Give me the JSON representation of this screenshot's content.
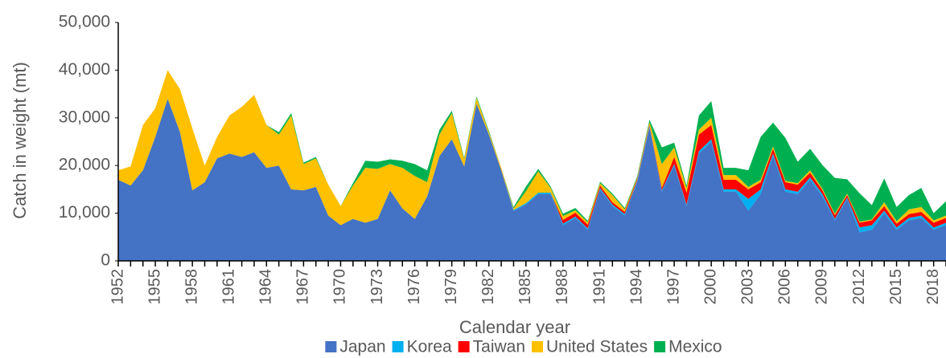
{
  "chart_data": {
    "type": "area",
    "stacked": true,
    "x_label": "Calendar year",
    "y_label": "Catch in weight (mt)",
    "x": [
      1952,
      1953,
      1954,
      1955,
      1956,
      1957,
      1958,
      1959,
      1960,
      1961,
      1962,
      1963,
      1964,
      1965,
      1966,
      1967,
      1968,
      1969,
      1970,
      1971,
      1972,
      1973,
      1974,
      1975,
      1976,
      1977,
      1978,
      1979,
      1980,
      1981,
      1982,
      1983,
      1984,
      1985,
      1986,
      1987,
      1988,
      1989,
      1990,
      1991,
      1992,
      1993,
      1994,
      1995,
      1996,
      1997,
      1998,
      1999,
      2000,
      2001,
      2002,
      2003,
      2004,
      2005,
      2006,
      2007,
      2008,
      2009,
      2010,
      2011,
      2012,
      2013,
      2014,
      2015,
      2016,
      2017,
      2018,
      2019
    ],
    "xlim": [
      1952,
      2019
    ],
    "xticks": [
      1952,
      1955,
      1958,
      1961,
      1964,
      1967,
      1970,
      1973,
      1976,
      1979,
      1982,
      1985,
      1988,
      1991,
      1994,
      1997,
      2000,
      2003,
      2006,
      2009,
      2012,
      2015,
      2018
    ],
    "ylim": [
      0,
      50000
    ],
    "yticks": [
      0,
      {
        "value": 10000,
        "label": "10,000"
      },
      {
        "value": 20000,
        "label": "20,000"
      },
      {
        "value": 30000,
        "label": "30,000"
      },
      {
        "value": 40000,
        "label": "40,000"
      },
      {
        "value": 50000,
        "label": "50,000"
      }
    ],
    "legend": "bottom",
    "series": [
      {
        "name": "Japan",
        "color": "#4472c4",
        "values": [
          17000,
          15800,
          19000,
          26000,
          34000,
          27000,
          14800,
          16500,
          21500,
          22500,
          21800,
          22800,
          19500,
          20000,
          15000,
          14800,
          15500,
          9500,
          7500,
          8800,
          8000,
          8800,
          14800,
          11000,
          8800,
          13500,
          22000,
          25500,
          19800,
          33000,
          26500,
          19000,
          10500,
          11800,
          14000,
          14000,
          7500,
          9000,
          6500,
          15000,
          11500,
          9500,
          16500,
          28000,
          14500,
          20000,
          11500,
          22500,
          25000,
          14500,
          14500,
          10500,
          14000,
          22000,
          14500,
          14000,
          17000,
          13500,
          8500,
          13000,
          6000,
          6500,
          10000,
          6500,
          8500,
          9000,
          6500,
          7500
        ]
      },
      {
        "name": "Korea",
        "color": "#00b0f0",
        "values": [
          0,
          0,
          0,
          0,
          0,
          0,
          0,
          0,
          0,
          0,
          0,
          0,
          0,
          0,
          0,
          0,
          0,
          0,
          0,
          0,
          0,
          0,
          0,
          0,
          0,
          0,
          0,
          0,
          0,
          0,
          0,
          0,
          200,
          300,
          300,
          300,
          300,
          300,
          300,
          300,
          300,
          300,
          300,
          300,
          300,
          300,
          300,
          500,
          500,
          500,
          500,
          2500,
          1000,
          500,
          500,
          500,
          500,
          500,
          300,
          300,
          1000,
          1000,
          500,
          500,
          500,
          500,
          500,
          500
        ]
      },
      {
        "name": "Taiwan",
        "color": "#ff0000",
        "values": [
          0,
          0,
          0,
          0,
          0,
          0,
          0,
          0,
          0,
          0,
          0,
          0,
          0,
          0,
          0,
          0,
          0,
          0,
          0,
          0,
          0,
          0,
          0,
          0,
          0,
          0,
          0,
          0,
          0,
          0,
          0,
          0,
          0,
          0,
          0,
          0,
          800,
          800,
          800,
          500,
          500,
          500,
          300,
          300,
          500,
          1500,
          2500,
          3500,
          3000,
          2000,
          2000,
          2000,
          1500,
          1000,
          1500,
          1500,
          1000,
          800,
          800,
          500,
          1000,
          1000,
          1000,
          800,
          800,
          800,
          1000,
          1000
        ]
      },
      {
        "name": "United States",
        "color": "#ffc000",
        "values": [
          2000,
          4000,
          9500,
          6000,
          6000,
          9000,
          13000,
          3500,
          4500,
          8000,
          10500,
          12000,
          9000,
          6500,
          15500,
          5500,
          6000,
          6500,
          4000,
          7000,
          11500,
          10500,
          5500,
          8500,
          9000,
          3000,
          4500,
          5500,
          1500,
          1200,
          500,
          500,
          300,
          2500,
          4500,
          1000,
          800,
          500,
          500,
          500,
          1500,
          500,
          300,
          500,
          5000,
          2000,
          1000,
          1000,
          1500,
          1000,
          1000,
          500,
          500,
          500,
          300,
          300,
          500,
          300,
          300,
          300,
          200,
          200,
          800,
          500,
          1000,
          1000,
          500,
          500
        ]
      },
      {
        "name": "Mexico",
        "color": "#00b050",
        "values": [
          0,
          0,
          0,
          0,
          0,
          0,
          0,
          0,
          0,
          0,
          0,
          0,
          0,
          500,
          500,
          300,
          300,
          0,
          0,
          500,
          1500,
          1500,
          1000,
          1500,
          2500,
          2500,
          1000,
          500,
          300,
          300,
          300,
          0,
          300,
          1000,
          500,
          300,
          500,
          500,
          300,
          300,
          300,
          300,
          300,
          500,
          3500,
          1000,
          500,
          3000,
          3500,
          1500,
          1500,
          3500,
          9000,
          5000,
          9000,
          4500,
          4500,
          5000,
          7500,
          3000,
          6000,
          3000,
          5000,
          3000,
          3000,
          4000,
          1500,
          3000
        ]
      }
    ]
  }
}
